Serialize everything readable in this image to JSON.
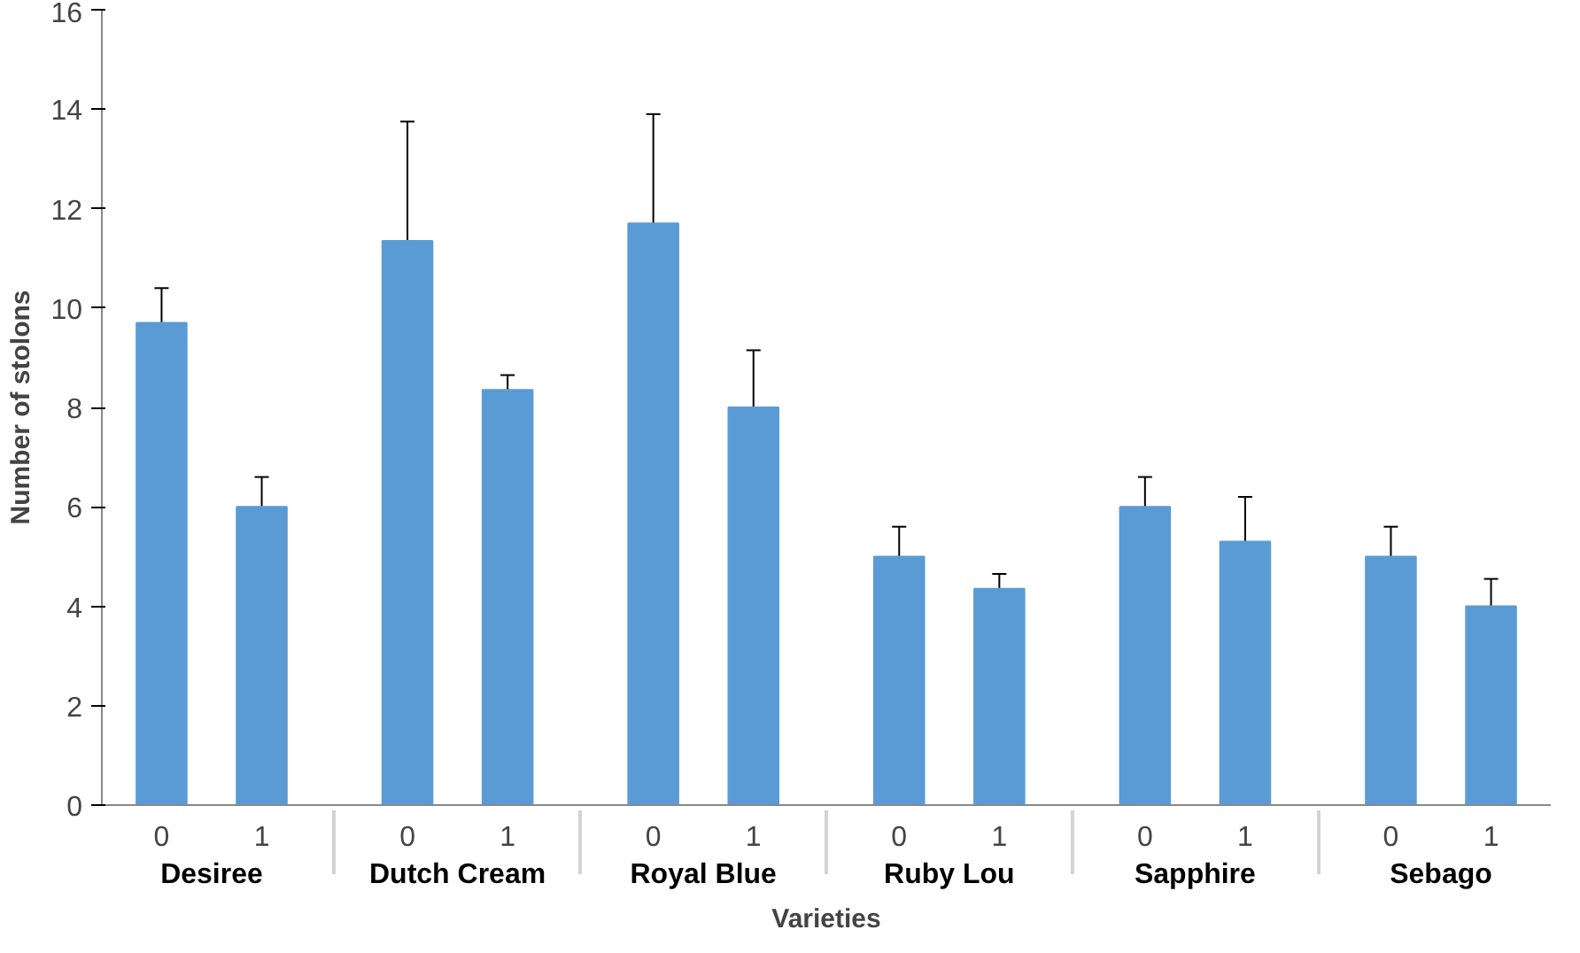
{
  "chart_data": {
    "type": "bar",
    "xlabel": "Varieties",
    "ylabel": "Number of stolons",
    "categories": [
      "0",
      "1",
      "0",
      "1",
      "0",
      "1",
      "0",
      "1",
      "0",
      "1",
      "0",
      "1"
    ],
    "values": [
      9.7,
      6.0,
      11.35,
      8.35,
      11.7,
      8.0,
      5.0,
      4.35,
      6.0,
      5.3,
      5.0,
      4.0
    ],
    "errors": [
      0.7,
      0.6,
      2.4,
      0.3,
      2.2,
      1.15,
      0.6,
      0.3,
      0.6,
      0.9,
      0.6,
      0.55
    ],
    "color": "#5b9bd5",
    "annotations": [
      "Desiree",
      "Dutch Cream",
      "Royal Blue",
      "Ruby Lou",
      "Sapphire",
      "Sebago"
    ],
    "ylim": [
      0,
      16
    ],
    "yticks": [
      0,
      2,
      4,
      6,
      8,
      10,
      12,
      14,
      16
    ],
    "grid": false
  }
}
